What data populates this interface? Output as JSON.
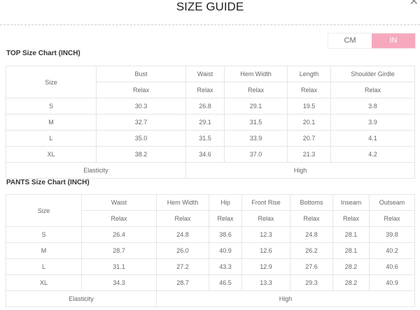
{
  "header": {
    "title": "SIZE GUIDE",
    "close_icon": "close-icon"
  },
  "unit_toggle": {
    "cm": "CM",
    "in": "IN",
    "selected": "IN",
    "active_color": "#f6a9bd"
  },
  "top": {
    "heading": "TOP Size Chart (INCH)",
    "size_label": "Size",
    "columns": [
      "Bust",
      "Waist",
      "Hem Width",
      "Length",
      "Shoulder Girdle"
    ],
    "subheader": "Relax",
    "rows": [
      {
        "size": "S",
        "values": [
          "30.3",
          "26.8",
          "29.1",
          "19.5",
          "3.8"
        ]
      },
      {
        "size": "M",
        "values": [
          "32.7",
          "29.1",
          "31.5",
          "20.1",
          "3.9"
        ]
      },
      {
        "size": "L",
        "values": [
          "35.0",
          "31.5",
          "33.9",
          "20.7",
          "4.1"
        ]
      },
      {
        "size": "XL",
        "values": [
          "38.2",
          "34.6",
          "37.0",
          "21.3",
          "4.2"
        ]
      }
    ],
    "elasticity_label": "Elasticity",
    "elasticity_value": "High"
  },
  "pants": {
    "heading": "PANTS Size Chart (INCH)",
    "size_label": "Size",
    "columns": [
      "Waist",
      "Hem Width",
      "Hip",
      "Front Rise",
      "Bottoms",
      "Inseam",
      "Outseam"
    ],
    "subheader": "Relax",
    "rows": [
      {
        "size": "S",
        "values": [
          "26.4",
          "24.8",
          "38.6",
          "12.3",
          "24.8",
          "28.1",
          "39.8"
        ]
      },
      {
        "size": "M",
        "values": [
          "28.7",
          "26.0",
          "40.9",
          "12.6",
          "26.2",
          "28.1",
          "40.2"
        ]
      },
      {
        "size": "L",
        "values": [
          "31.1",
          "27.2",
          "43.3",
          "12.9",
          "27.6",
          "28.2",
          "40.6"
        ]
      },
      {
        "size": "XL",
        "values": [
          "34.3",
          "28.7",
          "46.5",
          "13.3",
          "29.3",
          "28.2",
          "40.9"
        ]
      }
    ],
    "elasticity_label": "Elasticity",
    "elasticity_value": "High"
  }
}
